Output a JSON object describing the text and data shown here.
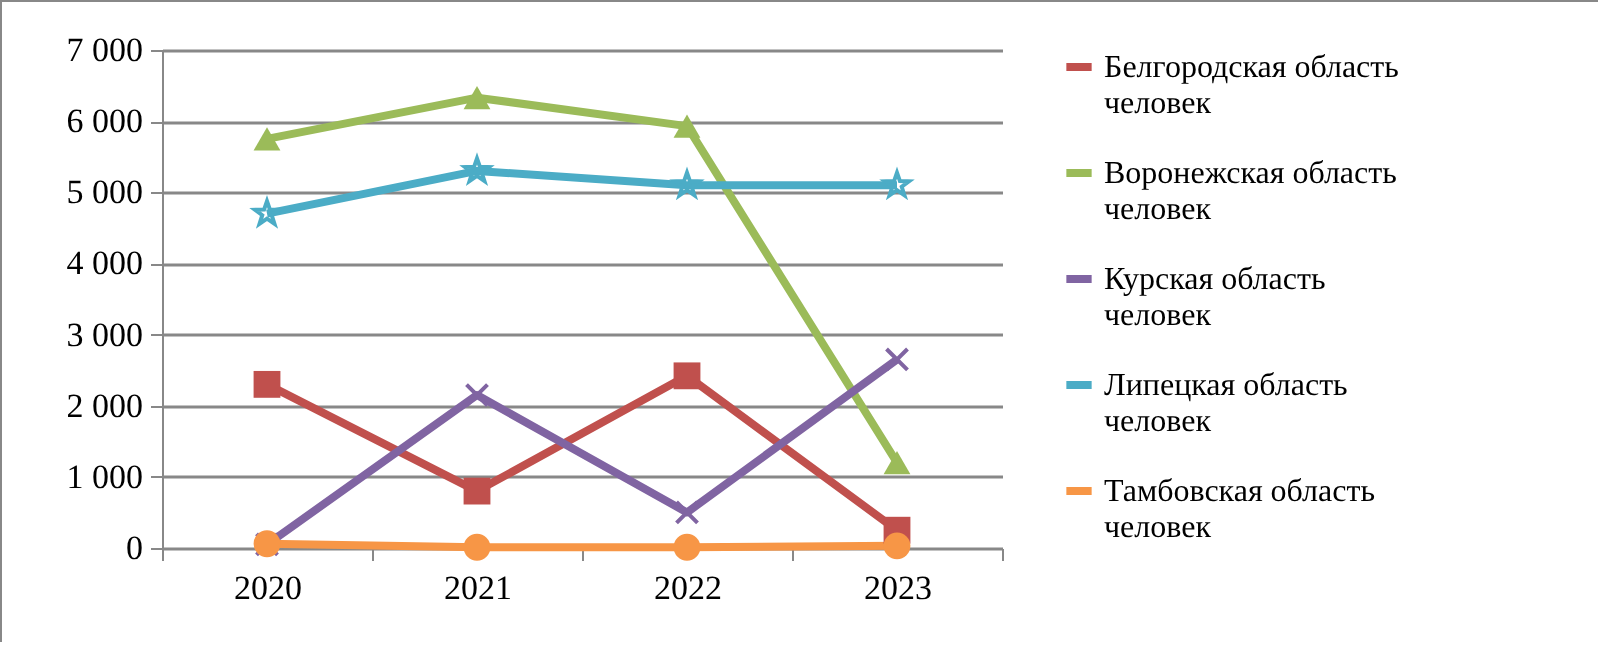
{
  "chart_data": {
    "type": "line",
    "categories": [
      "2020",
      "2021",
      "2022",
      "2023"
    ],
    "series": [
      {
        "name": "Белгородская область человек",
        "color": "#c0504d",
        "marker": "square",
        "values": [
          2300,
          800,
          2420,
          250
        ]
      },
      {
        "name": "Воронежская область человек",
        "color": "#9bbb59",
        "marker": "triangle",
        "values": [
          5750,
          6330,
          5930,
          1200
        ]
      },
      {
        "name": "Курская область человек",
        "color": "#8064a2",
        "marker": "cross",
        "values": [
          50,
          2150,
          500,
          2650
        ]
      },
      {
        "name": "Липецкая область человек",
        "color": "#4bacc6",
        "marker": "star",
        "values": [
          4700,
          5300,
          5100,
          5100
        ]
      },
      {
        "name": "Тамбовская область человек",
        "color": "#f79646",
        "marker": "circle",
        "values": [
          60,
          10,
          10,
          30
        ]
      }
    ],
    "ylim": [
      0,
      7000
    ],
    "yticks": [
      {
        "value": 0,
        "label": "0"
      },
      {
        "value": 1000,
        "label": "1 000"
      },
      {
        "value": 2000,
        "label": "2 000"
      },
      {
        "value": 3000,
        "label": "3 000"
      },
      {
        "value": 4000,
        "label": "4 000"
      },
      {
        "value": 5000,
        "label": "5 000"
      },
      {
        "value": 6000,
        "label": "6 000"
      },
      {
        "value": 7000,
        "label": "7 000"
      }
    ],
    "grid": "y",
    "legend": "right"
  }
}
